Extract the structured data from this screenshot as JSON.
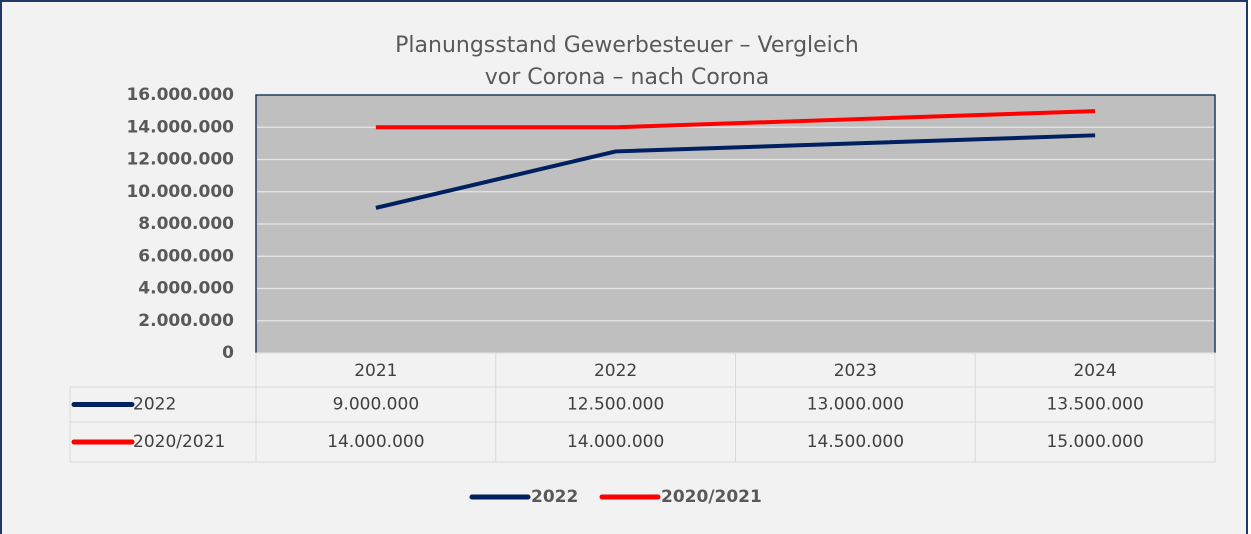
{
  "chart_data": {
    "type": "line",
    "title": [
      "Planungsstand Gewerbesteuer – Vergleich",
      "vor Corona – nach Corona"
    ],
    "categories": [
      "2021",
      "2022",
      "2023",
      "2024"
    ],
    "series": [
      {
        "name": "2022",
        "color": "#002060",
        "values": [
          9000000,
          12500000,
          13000000,
          13500000
        ],
        "value_labels": [
          "9.000.000",
          "12.500.000",
          "13.000.000",
          "13.500.000"
        ]
      },
      {
        "name": "2020/2021",
        "color": "#ff0000",
        "values": [
          14000000,
          14000000,
          14500000,
          15000000
        ],
        "value_labels": [
          "14.000.000",
          "14.000.000",
          "14.500.000",
          "15.000.000"
        ]
      }
    ],
    "ylim": [
      0,
      16000000
    ],
    "yticks": [
      0,
      {
        "value": 2000000,
        "label": "2.000.000"
      },
      {
        "value": 4000000,
        "label": "4.000.000"
      },
      {
        "value": 6000000,
        "label": "6.000.000"
      },
      {
        "value": 8000000,
        "label": "8.000.000"
      },
      {
        "value": 10000000,
        "label": "10.000.000"
      },
      {
        "value": 12000000,
        "label": "12.000.000"
      },
      {
        "value": 14000000,
        "label": "14.000.000"
      },
      {
        "value": 16000000,
        "label": "16.000.000"
      }
    ],
    "grid": true
  }
}
